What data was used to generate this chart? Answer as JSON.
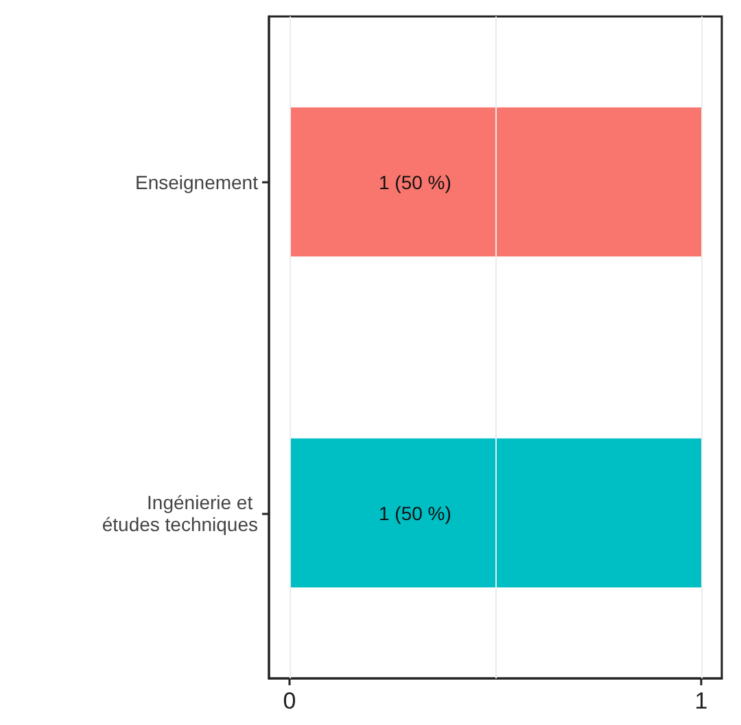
{
  "chart_data": {
    "type": "bar",
    "orientation": "horizontal",
    "categories": [
      "Enseignement",
      "Ingénierie et études techniques"
    ],
    "values": [
      1,
      1
    ],
    "colors": [
      "#f8766d",
      "#00bfc4"
    ],
    "value_labels": [
      "1 (50 %)",
      "1 (50 %)"
    ],
    "xlim": [
      -0.05,
      1.05
    ],
    "xticks": [
      0,
      {
        "value": 0.5,
        "label": null
      },
      1
    ],
    "grid": "x"
  }
}
